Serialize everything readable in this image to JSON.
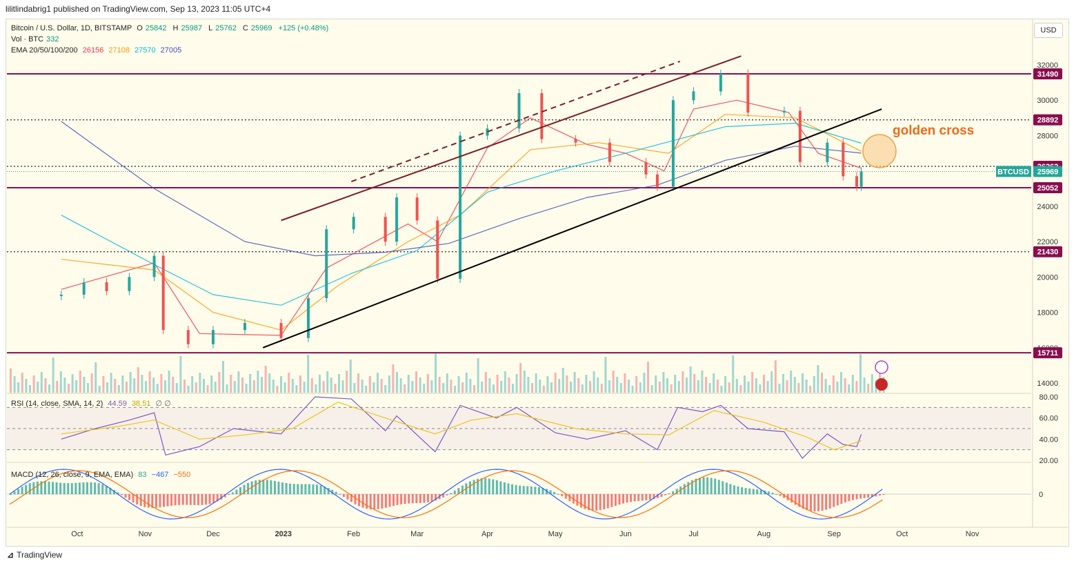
{
  "header": {
    "published": "lilitlindabrig1 published on TradingView.com, Sep 13, 2023 11:05 UTC+4"
  },
  "currency_button": "USD",
  "legend": {
    "symbol": "Bitcoin / U.S. Dollar, 1D, BITSTAMP",
    "ohlc": {
      "o_label": "O",
      "o": "25842",
      "h_label": "H",
      "h": "25987",
      "l_label": "L",
      "l": "25762",
      "c_label": "C",
      "c": "25969",
      "change": "+125 (+0.48%)"
    },
    "vol_label": "Vol · BTC",
    "vol": "332",
    "ema_label": "EMA 20/50/100/200",
    "ema": [
      {
        "value": "26156",
        "color": "#f23645"
      },
      {
        "value": "27108",
        "color": "#ff9800"
      },
      {
        "value": "27570",
        "color": "#00bcd4"
      },
      {
        "value": "27005",
        "color": "#3f51b5"
      }
    ],
    "rsi_label": "RSI (14, close, SMA, 14, 2)",
    "rsi": "44.59",
    "rsi_sma": "38.51",
    "rsi_extra": "∅ ∅",
    "macd_label": "MACD (12, 26, close, 9, EMA, EMA)",
    "macd_hist": "83",
    "macd": "−467",
    "macd_signal": "−550"
  },
  "annotation": "golden cross",
  "footer": {
    "brand": "TradingView"
  },
  "colors": {
    "up": "#26a69a",
    "down": "#ef5350",
    "level": "#880e4f",
    "channel": "#7b1e1e",
    "support": "#000000",
    "rsi": "#7e57c2",
    "rsi_ma": "#f0c419",
    "macd": "#2962ff",
    "macd_signal": "#ff6d00",
    "price_label": "#26a69a"
  },
  "chart_data": {
    "type": "line",
    "title": "Bitcoin / U.S. Dollar, 1D, BITSTAMP",
    "price_axis_ticks": [
      "32000",
      "30000",
      "28000",
      "26000",
      "24000",
      "22000",
      "20000",
      "18000",
      "16000",
      "14000"
    ],
    "ylim": [
      13200,
      33500
    ],
    "time_axis_ticks": [
      "Oct",
      "Nov",
      "Dec",
      "2023",
      "Feb",
      "Mar",
      "Apr",
      "May",
      "Jun",
      "Jul",
      "Aug",
      "Sep",
      "Oct",
      "Nov"
    ],
    "horizontal_levels": [
      {
        "value": 31490,
        "label": "31490",
        "style": "solid"
      },
      {
        "value": 28892,
        "label": "28892",
        "style": "dotted"
      },
      {
        "value": 26262,
        "label": "26262",
        "style": "dotted"
      },
      {
        "value": 25052,
        "label": "25052",
        "style": "solid"
      },
      {
        "value": 21430,
        "label": "21430",
        "style": "dotted"
      },
      {
        "value": 15711,
        "label": "15711",
        "style": "solid"
      }
    ],
    "current_price_label": {
      "name": "BTCUSD",
      "value": "25969"
    },
    "price_close": {
      "dates": [
        "2022-09-25",
        "2022-10-05",
        "2022-10-15",
        "2022-10-25",
        "2022-11-05",
        "2022-11-09",
        "2022-11-20",
        "2022-12-01",
        "2022-12-15",
        "2022-12-31",
        "2023-01-12",
        "2023-01-20",
        "2023-02-01",
        "2023-02-15",
        "2023-02-20",
        "2023-03-01",
        "2023-03-10",
        "2023-03-20",
        "2023-04-01",
        "2023-04-15",
        "2023-04-25",
        "2023-05-10",
        "2023-05-25",
        "2023-06-10",
        "2023-06-15",
        "2023-06-22",
        "2023-07-01",
        "2023-07-13",
        "2023-07-25",
        "2023-08-10",
        "2023-08-17",
        "2023-08-29",
        "2023-09-05",
        "2023-09-11",
        "2023-09-13"
      ],
      "values": [
        19000,
        19700,
        19200,
        20000,
        21200,
        17000,
        16200,
        17000,
        17400,
        16550,
        18800,
        22700,
        23400,
        22000,
        24500,
        23200,
        19900,
        28000,
        28400,
        30400,
        27800,
        27600,
        26500,
        25800,
        25100,
        30000,
        30500,
        31500,
        29300,
        29400,
        26500,
        27600,
        25700,
        25100,
        25969
      ]
    },
    "ema_series": [
      {
        "name": "EMA 20",
        "points": [
          [
            "2022-09-25",
            19300
          ],
          [
            "2022-11-05",
            20800
          ],
          [
            "2022-11-25",
            16800
          ],
          [
            "2022-12-31",
            16700
          ],
          [
            "2023-01-20",
            20500
          ],
          [
            "2023-02-25",
            23000
          ],
          [
            "2023-03-10",
            22000
          ],
          [
            "2023-04-01",
            27300
          ],
          [
            "2023-04-20",
            29000
          ],
          [
            "2023-05-15",
            27500
          ],
          [
            "2023-06-01",
            27000
          ],
          [
            "2023-06-18",
            26000
          ],
          [
            "2023-07-01",
            29500
          ],
          [
            "2023-07-20",
            30000
          ],
          [
            "2023-08-12",
            29300
          ],
          [
            "2023-08-25",
            27000
          ],
          [
            "2023-09-13",
            26156
          ]
        ]
      },
      {
        "name": "EMA 50",
        "points": [
          [
            "2022-09-25",
            21000
          ],
          [
            "2022-11-05",
            20400
          ],
          [
            "2022-12-01",
            18000
          ],
          [
            "2022-12-31",
            17000
          ],
          [
            "2023-01-25",
            19500
          ],
          [
            "2023-02-25",
            22000
          ],
          [
            "2023-03-20",
            23500
          ],
          [
            "2023-04-20",
            27200
          ],
          [
            "2023-05-20",
            27600
          ],
          [
            "2023-06-20",
            27000
          ],
          [
            "2023-07-15",
            29200
          ],
          [
            "2023-08-15",
            29000
          ],
          [
            "2023-09-13",
            27108
          ]
        ]
      },
      {
        "name": "EMA 100",
        "points": [
          [
            "2022-09-25",
            23500
          ],
          [
            "2022-11-05",
            20700
          ],
          [
            "2022-12-01",
            19000
          ],
          [
            "2022-12-31",
            18400
          ],
          [
            "2023-01-31",
            20200
          ],
          [
            "2023-03-01",
            21500
          ],
          [
            "2023-04-01",
            24800
          ],
          [
            "2023-05-01",
            26000
          ],
          [
            "2023-06-01",
            27000
          ],
          [
            "2023-07-15",
            28500
          ],
          [
            "2023-08-15",
            28700
          ],
          [
            "2023-09-13",
            27570
          ]
        ]
      },
      {
        "name": "EMA 200",
        "points": [
          [
            "2022-09-25",
            28800
          ],
          [
            "2022-11-05",
            25000
          ],
          [
            "2022-12-15",
            22000
          ],
          [
            "2023-01-15",
            21200
          ],
          [
            "2023-02-15",
            21400
          ],
          [
            "2023-03-15",
            21900
          ],
          [
            "2023-04-15",
            23300
          ],
          [
            "2023-05-15",
            24500
          ],
          [
            "2023-06-15",
            25200
          ],
          [
            "2023-07-15",
            26600
          ],
          [
            "2023-08-15",
            27400
          ],
          [
            "2023-09-13",
            27005
          ]
        ]
      }
    ],
    "trendlines": [
      {
        "name": "channel upper",
        "style": "solid",
        "from": [
          "2022-12-31",
          23200
        ],
        "to": [
          "2023-07-22",
          32500
        ]
      },
      {
        "name": "channel upper extension",
        "style": "dashed",
        "from": [
          "2023-01-31",
          25400
        ],
        "to": [
          "2023-06-25",
          32200
        ]
      },
      {
        "name": "ascending support",
        "style": "solid",
        "from": [
          "2022-12-23",
          16000
        ],
        "to": [
          "2023-09-22",
          29500
        ]
      }
    ],
    "rsi": {
      "ylim": [
        20,
        80
      ],
      "ticks": [
        "80.00",
        "60.00",
        "40.00",
        "20.00"
      ],
      "bands": [
        30,
        50,
        70
      ],
      "values": [
        [
          "2022-09-25",
          40
        ],
        [
          "2022-10-10",
          50
        ],
        [
          "2022-10-25",
          58
        ],
        [
          "2022-11-05",
          65
        ],
        [
          "2022-11-10",
          25
        ],
        [
          "2022-11-25",
          33
        ],
        [
          "2022-12-10",
          50
        ],
        [
          "2022-12-31",
          45
        ],
        [
          "2023-01-15",
          80
        ],
        [
          "2023-01-31",
          78
        ],
        [
          "2023-02-15",
          48
        ],
        [
          "2023-02-20",
          62
        ],
        [
          "2023-03-09",
          28
        ],
        [
          "2023-03-20",
          72
        ],
        [
          "2023-04-05",
          60
        ],
        [
          "2023-04-14",
          70
        ],
        [
          "2023-05-01",
          46
        ],
        [
          "2023-05-15",
          40
        ],
        [
          "2023-06-01",
          48
        ],
        [
          "2023-06-15",
          30
        ],
        [
          "2023-06-24",
          70
        ],
        [
          "2023-07-05",
          66
        ],
        [
          "2023-07-13",
          72
        ],
        [
          "2023-07-25",
          50
        ],
        [
          "2023-08-10",
          47
        ],
        [
          "2023-08-18",
          22
        ],
        [
          "2023-08-29",
          45
        ],
        [
          "2023-09-05",
          35
        ],
        [
          "2023-09-11",
          33
        ],
        [
          "2023-09-13",
          44.59
        ]
      ],
      "sma_values": [
        [
          "2022-09-25",
          45
        ],
        [
          "2022-10-20",
          52
        ],
        [
          "2022-11-05",
          58
        ],
        [
          "2022-11-25",
          40
        ],
        [
          "2022-12-15",
          44
        ],
        [
          "2023-01-05",
          50
        ],
        [
          "2023-01-25",
          75
        ],
        [
          "2023-02-15",
          60
        ],
        [
          "2023-03-09",
          45
        ],
        [
          "2023-03-25",
          58
        ],
        [
          "2023-04-14",
          64
        ],
        [
          "2023-05-10",
          50
        ],
        [
          "2023-06-01",
          45
        ],
        [
          "2023-06-20",
          44
        ],
        [
          "2023-07-10",
          67
        ],
        [
          "2023-08-01",
          56
        ],
        [
          "2023-08-20",
          42
        ],
        [
          "2023-09-01",
          30
        ],
        [
          "2023-09-13",
          38.51
        ]
      ]
    },
    "macd": {
      "zero_tick": "0",
      "last": {
        "histogram": 83,
        "macd": -467,
        "signal": -550
      }
    }
  }
}
